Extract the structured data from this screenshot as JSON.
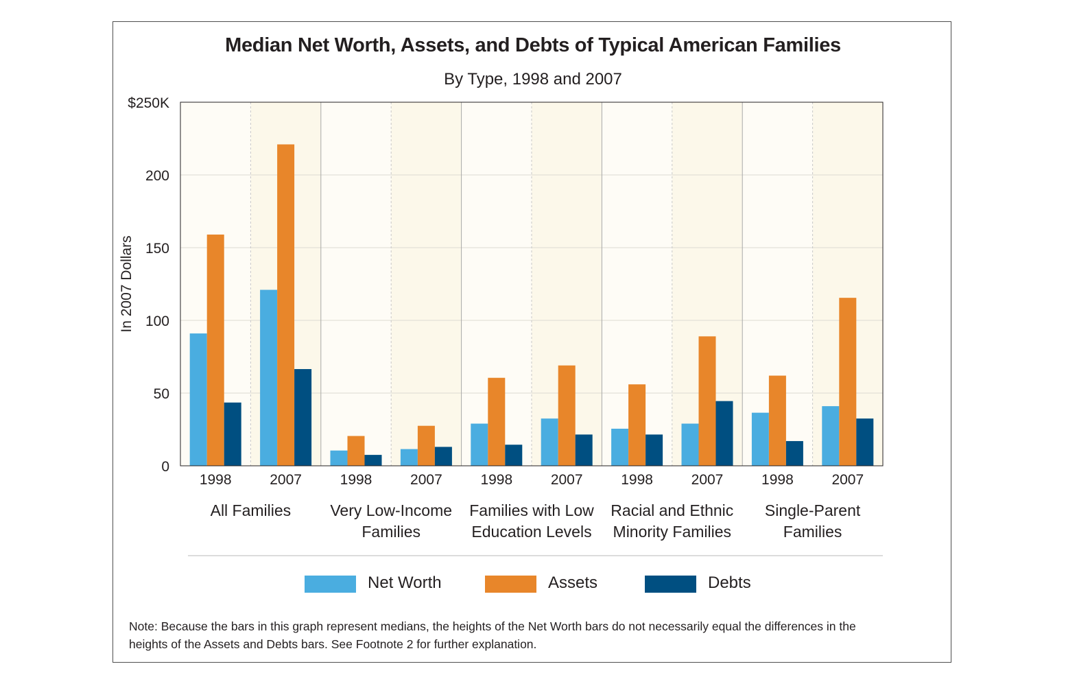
{
  "chart_data": {
    "type": "bar",
    "title": "Median Net Worth, Assets, and Debts of Typical American Families",
    "subtitle": "By Type, 1998 and 2007",
    "ylabel": "In 2007 Dollars",
    "ylim": [
      0,
      250
    ],
    "yticks": [
      "0",
      "50",
      "100",
      "150",
      "200",
      "$250K"
    ],
    "yticks_values": [
      0,
      50,
      100,
      150,
      200,
      250
    ],
    "grid": true,
    "legend_position": "bottom",
    "groups": [
      {
        "label": [
          "All Families"
        ],
        "years": [
          "1998",
          "2007"
        ]
      },
      {
        "label": [
          "Very Low-Income",
          "Families"
        ],
        "years": [
          "1998",
          "2007"
        ]
      },
      {
        "label": [
          "Families with Low",
          "Education Levels"
        ],
        "years": [
          "1998",
          "2007"
        ]
      },
      {
        "label": [
          "Racial and Ethnic",
          "Minority Families"
        ],
        "years": [
          "1998",
          "2007"
        ]
      },
      {
        "label": [
          "Single-Parent",
          "Families"
        ],
        "years": [
          "1998",
          "2007"
        ]
      }
    ],
    "categories": [
      "All Families 1998",
      "All Families 2007",
      "Very Low-Income Families 1998",
      "Very Low-Income Families 2007",
      "Families with Low Education Levels 1998",
      "Families with Low Education Levels 2007",
      "Racial and Ethnic Minority Families 1998",
      "Racial and Ethnic Minority Families 2007",
      "Single-Parent Families 1998",
      "Single-Parent Families 2007"
    ],
    "series": [
      {
        "name": "Net Worth",
        "color": "#4aade0",
        "values": [
          91,
          121,
          10.5,
          11.5,
          29,
          32.5,
          25.5,
          29,
          36.5,
          41
        ]
      },
      {
        "name": "Assets",
        "color": "#e8862a",
        "values": [
          159,
          221,
          20.5,
          27.5,
          60.5,
          69,
          56,
          89,
          62,
          115.5
        ]
      },
      {
        "name": "Debts",
        "color": "#004f81",
        "values": [
          43.5,
          66.5,
          7.5,
          13,
          14.5,
          21.5,
          21.5,
          44.5,
          17,
          32.5
        ]
      }
    ]
  },
  "note": "Note: Because the bars in this graph represent medians, the heights of the Net Worth bars do not necessarily equal the differences in the heights of the Assets and Debts bars. See Footnote 2 for further explanation."
}
